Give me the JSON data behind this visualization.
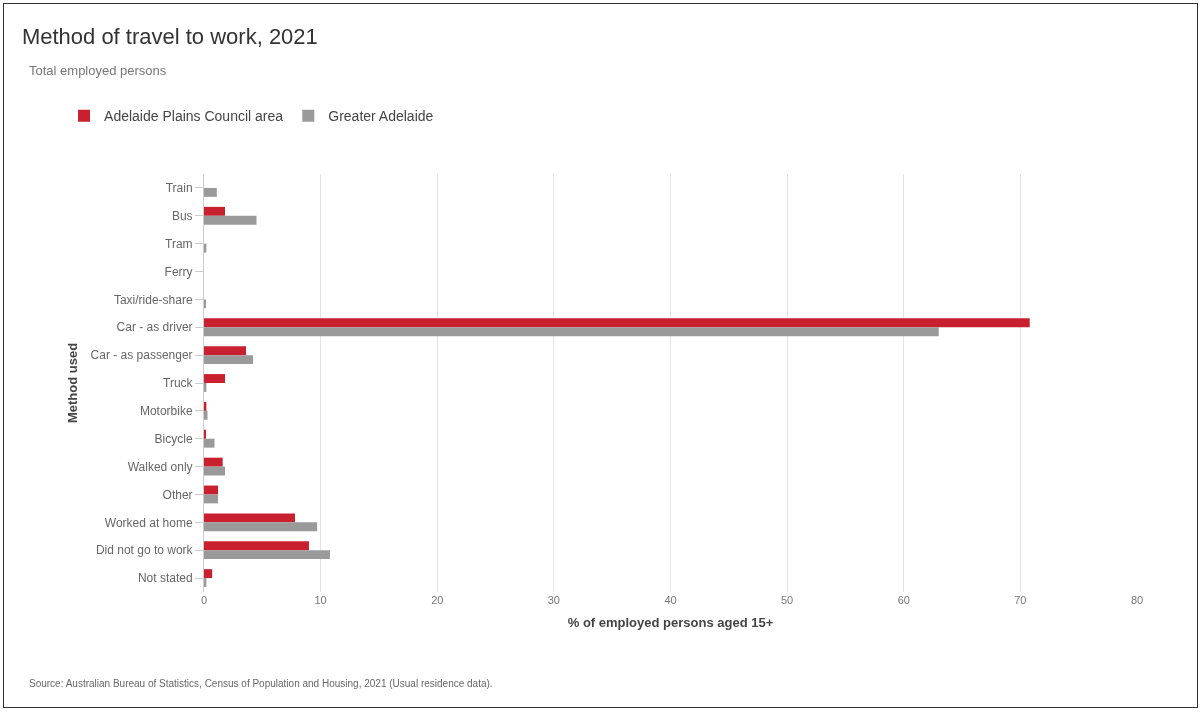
{
  "chart_data": {
    "type": "bar",
    "orientation": "horizontal",
    "title": "Method of travel to work, 2021",
    "subtitle": "Total employed persons",
    "xlabel": "% of employed persons aged 15+",
    "ylabel": "Method used",
    "categories": [
      "Train",
      "Bus",
      "Tram",
      "Ferry",
      "Taxi/ride-share",
      "Car - as driver",
      "Car - as passenger",
      "Truck",
      "Motorbike",
      "Bicycle",
      "Walked only",
      "Other",
      "Worked at home",
      "Did not go to work",
      "Not stated"
    ],
    "series": [
      {
        "name": "Adelaide Plains Council area",
        "color": "#c8202f",
        "values": [
          0,
          1.8,
          0,
          0,
          0,
          70.8,
          3.6,
          1.8,
          0.2,
          0.1,
          1.6,
          1.2,
          7.8,
          9.0,
          0.7
        ]
      },
      {
        "name": "Greater Adelaide",
        "color": "#9a9a9a",
        "values": [
          1.1,
          4.5,
          0.2,
          0,
          0.1,
          63.0,
          4.2,
          0.2,
          0.3,
          0.9,
          1.8,
          1.2,
          9.7,
          10.8,
          0.2
        ]
      }
    ],
    "xlim": [
      0,
      80
    ],
    "xticks": [
      0,
      10,
      20,
      30,
      40,
      50,
      60,
      70,
      80
    ],
    "grid": "x",
    "legend": "top left",
    "annotations": [
      "Source: Australian Bureau of Statistics, Census of Population and Housing, 2021 (Usual residence data)."
    ]
  }
}
